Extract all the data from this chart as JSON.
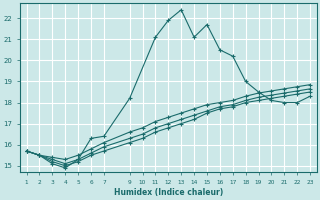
{
  "xlabel": "Humidex (Indice chaleur)",
  "bg_color": "#cce8e8",
  "grid_color": "#ffffff",
  "line_color": "#1a6b6b",
  "xlim": [
    0.5,
    23.5
  ],
  "ylim": [
    14.7,
    22.7
  ],
  "yticks": [
    15,
    16,
    17,
    18,
    19,
    20,
    21,
    22
  ],
  "xticks": [
    1,
    2,
    3,
    4,
    5,
    6,
    7,
    9,
    10,
    11,
    12,
    13,
    14,
    15,
    16,
    17,
    18,
    19,
    20,
    21,
    22,
    23
  ],
  "lines": [
    {
      "x": [
        1,
        2,
        3,
        4,
        5,
        6,
        7,
        9,
        11,
        12,
        13,
        14,
        15,
        16,
        17,
        18,
        19,
        20,
        21,
        22,
        23
      ],
      "y": [
        15.7,
        15.5,
        15.1,
        14.9,
        15.3,
        16.3,
        16.4,
        18.2,
        21.1,
        21.9,
        22.4,
        21.1,
        21.7,
        20.5,
        20.2,
        19.0,
        18.5,
        18.1,
        18.0,
        18.0,
        18.3
      ]
    },
    {
      "x": [
        1,
        2,
        3,
        4,
        5,
        6,
        7,
        9,
        10,
        11,
        12,
        13,
        14,
        15,
        16,
        17,
        18,
        19,
        20,
        21,
        22,
        23
      ],
      "y": [
        15.7,
        15.5,
        15.4,
        15.3,
        15.5,
        15.8,
        16.1,
        16.6,
        16.8,
        17.1,
        17.3,
        17.5,
        17.7,
        17.9,
        18.0,
        18.1,
        18.3,
        18.45,
        18.55,
        18.65,
        18.75,
        18.85
      ]
    },
    {
      "x": [
        1,
        2,
        3,
        4,
        5,
        6,
        7,
        9,
        10,
        11,
        12,
        13,
        14,
        15,
        16,
        17,
        18,
        19,
        20,
        21,
        22,
        23
      ],
      "y": [
        15.7,
        15.5,
        15.3,
        15.1,
        15.3,
        15.6,
        15.9,
        16.3,
        16.5,
        16.8,
        17.0,
        17.2,
        17.4,
        17.6,
        17.8,
        17.9,
        18.1,
        18.25,
        18.35,
        18.45,
        18.55,
        18.65
      ]
    },
    {
      "x": [
        1,
        2,
        3,
        4,
        5,
        6,
        7,
        9,
        10,
        11,
        12,
        13,
        14,
        15,
        16,
        17,
        18,
        19,
        20,
        21,
        22,
        23
      ],
      "y": [
        15.7,
        15.5,
        15.2,
        15.0,
        15.2,
        15.5,
        15.7,
        16.1,
        16.3,
        16.6,
        16.8,
        17.0,
        17.2,
        17.5,
        17.7,
        17.8,
        18.0,
        18.1,
        18.2,
        18.3,
        18.4,
        18.5
      ]
    }
  ]
}
